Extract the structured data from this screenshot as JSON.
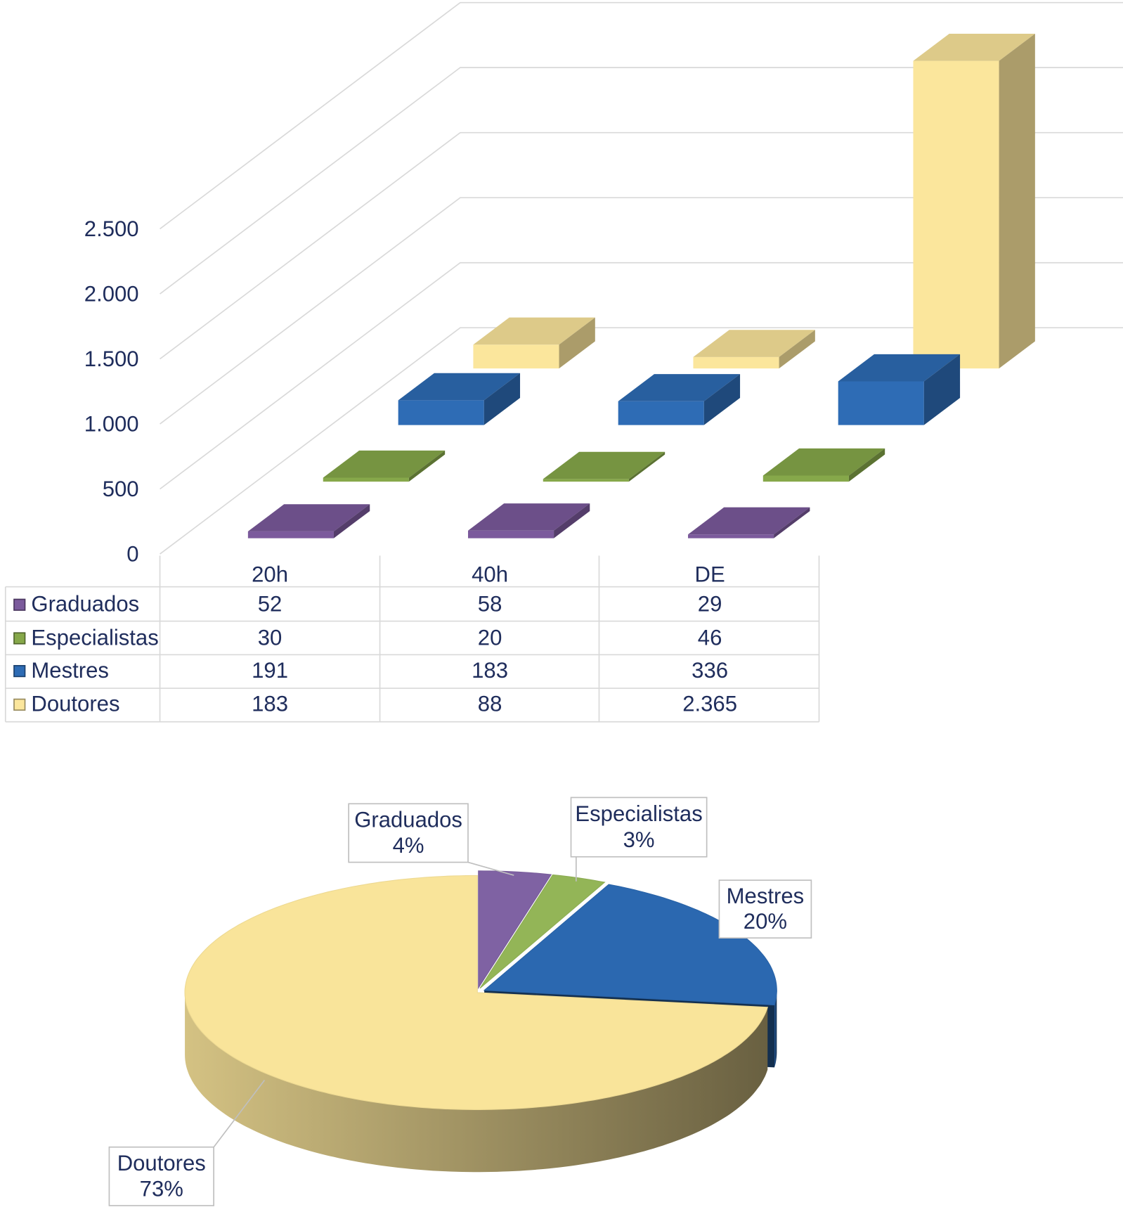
{
  "chart_data": [
    {
      "type": "bar",
      "categories": [
        "20h",
        "40h",
        "DE"
      ],
      "series": [
        {
          "name": "Graduados",
          "color": "#7b5a9c",
          "values": [
            52,
            58,
            29
          ]
        },
        {
          "name": "Especialistas",
          "color": "#86a84a",
          "values": [
            30,
            20,
            46
          ]
        },
        {
          "name": "Mestres",
          "color": "#2e6cb5",
          "values": [
            191,
            183,
            336
          ]
        },
        {
          "name": "Doutores",
          "color": "#fbe69c",
          "values": [
            183,
            88,
            2365
          ],
          "value_labels": [
            "183",
            "88",
            "2.365"
          ]
        }
      ],
      "ylim": [
        0,
        2500
      ],
      "yticks": [
        0,
        500,
        {
          "value": 1000,
          "label": "1.000"
        },
        {
          "value": 1500,
          "label": "1.500"
        },
        {
          "value": 2000,
          "label": "2.000"
        },
        {
          "value": 2500,
          "label": "2.500"
        }
      ],
      "grid": true
    },
    {
      "type": "pie",
      "categories": [
        "Graduados",
        "Especialistas",
        "Mestres",
        "Doutores"
      ],
      "values": [
        4,
        3,
        20,
        73
      ],
      "value_labels": [
        "4%",
        "3%",
        "20%",
        "73%"
      ],
      "colors": [
        "#7f62a3",
        "#93b557",
        "#2b68b0",
        "#f9e49a"
      ]
    }
  ]
}
